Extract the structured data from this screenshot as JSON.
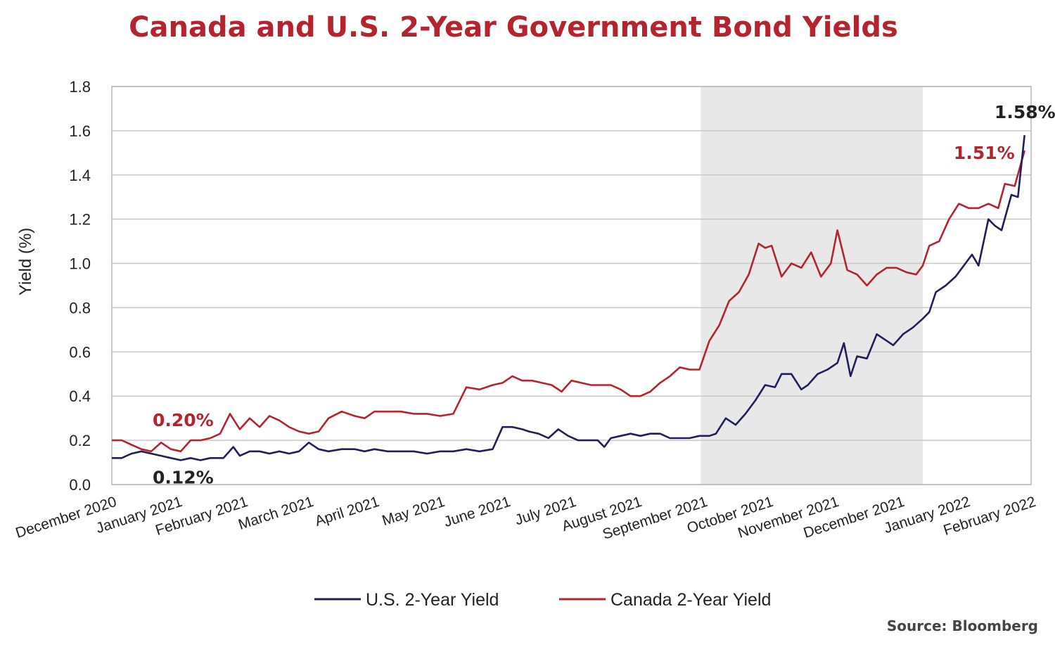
{
  "chart_data": {
    "type": "line",
    "title": "Canada and U.S. 2-Year Government Bond Yields",
    "ylabel": "Yield (%)",
    "ylim": [
      0,
      1.8
    ],
    "yticks": [
      "0.0",
      "0.2",
      "0.4",
      "0.6",
      "0.8",
      "1.0",
      "1.2",
      "1.4",
      "1.6",
      "1.8"
    ],
    "xlim": [
      0,
      14
    ],
    "x_tick_labels": [
      "December 2020",
      "January 2021",
      "February 2021",
      "March 2021",
      "April 2021",
      "May 2021",
      "June 2021",
      "July 2021",
      "August 2021",
      "September 2021",
      "October 2021",
      "November 2021",
      "December 2021",
      "January 2022",
      "February 2022"
    ],
    "grid": "horizontal",
    "shaded_region": [
      8.97,
      12.35
    ],
    "legend_position": "bottom",
    "source": "Source: Bloomberg",
    "series": [
      {
        "name": "U.S. 2-Year Yield",
        "color": "#1f1f5c",
        "x": [
          0,
          0.15,
          0.3,
          0.45,
          0.6,
          0.75,
          0.9,
          1.05,
          1.2,
          1.35,
          1.5,
          1.7,
          1.85,
          1.95,
          2.1,
          2.25,
          2.4,
          2.55,
          2.7,
          2.85,
          3.0,
          3.15,
          3.3,
          3.5,
          3.7,
          3.85,
          4.0,
          4.2,
          4.4,
          4.6,
          4.8,
          5.0,
          5.2,
          5.4,
          5.6,
          5.8,
          5.95,
          6.1,
          6.25,
          6.35,
          6.5,
          6.65,
          6.8,
          6.95,
          7.1,
          7.25,
          7.4,
          7.5,
          7.6,
          7.75,
          7.9,
          8.05,
          8.2,
          8.35,
          8.5,
          8.65,
          8.8,
          8.95,
          9.1,
          9.2,
          9.35,
          9.5,
          9.65,
          9.8,
          9.95,
          10.1,
          10.2,
          10.35,
          10.5,
          10.6,
          10.75,
          10.9,
          11.05,
          11.15,
          11.25,
          11.35,
          11.5,
          11.65,
          11.8,
          11.9,
          12.05,
          12.2,
          12.35,
          12.45,
          12.55,
          12.7,
          12.85,
          13.0,
          13.1,
          13.2,
          13.35,
          13.45,
          13.55,
          13.7,
          13.8,
          13.9
        ],
        "values": [
          0.12,
          0.12,
          0.14,
          0.15,
          0.14,
          0.13,
          0.12,
          0.11,
          0.12,
          0.11,
          0.12,
          0.12,
          0.17,
          0.13,
          0.15,
          0.15,
          0.14,
          0.15,
          0.14,
          0.15,
          0.19,
          0.16,
          0.15,
          0.16,
          0.16,
          0.15,
          0.16,
          0.15,
          0.15,
          0.15,
          0.14,
          0.15,
          0.15,
          0.16,
          0.15,
          0.16,
          0.26,
          0.26,
          0.25,
          0.24,
          0.23,
          0.21,
          0.25,
          0.22,
          0.2,
          0.2,
          0.2,
          0.17,
          0.21,
          0.22,
          0.23,
          0.22,
          0.23,
          0.23,
          0.21,
          0.21,
          0.21,
          0.22,
          0.22,
          0.23,
          0.3,
          0.27,
          0.32,
          0.38,
          0.45,
          0.44,
          0.5,
          0.5,
          0.43,
          0.45,
          0.5,
          0.52,
          0.55,
          0.64,
          0.49,
          0.58,
          0.57,
          0.68,
          0.65,
          0.63,
          0.68,
          0.71,
          0.75,
          0.78,
          0.87,
          0.9,
          0.94,
          1.0,
          1.04,
          0.99,
          1.2,
          1.17,
          1.15,
          1.31,
          1.3,
          1.58
        ]
      },
      {
        "name": "Canada 2-Year Yield",
        "color": "#b5232f",
        "x": [
          0,
          0.15,
          0.3,
          0.45,
          0.6,
          0.75,
          0.9,
          1.05,
          1.2,
          1.35,
          1.5,
          1.65,
          1.8,
          1.95,
          2.1,
          2.25,
          2.4,
          2.55,
          2.7,
          2.85,
          3.0,
          3.15,
          3.3,
          3.5,
          3.7,
          3.85,
          4.0,
          4.2,
          4.4,
          4.6,
          4.8,
          5.0,
          5.2,
          5.4,
          5.6,
          5.8,
          5.95,
          6.1,
          6.25,
          6.4,
          6.55,
          6.7,
          6.85,
          7.0,
          7.15,
          7.3,
          7.45,
          7.6,
          7.75,
          7.9,
          8.05,
          8.2,
          8.35,
          8.5,
          8.65,
          8.8,
          8.95,
          9.1,
          9.25,
          9.4,
          9.55,
          9.7,
          9.85,
          9.95,
          10.05,
          10.2,
          10.35,
          10.5,
          10.65,
          10.8,
          10.95,
          11.05,
          11.2,
          11.35,
          11.5,
          11.65,
          11.8,
          11.95,
          12.1,
          12.25,
          12.35,
          12.45,
          12.6,
          12.75,
          12.9,
          13.05,
          13.2,
          13.35,
          13.5,
          13.6,
          13.75,
          13.9
        ],
        "values": [
          0.2,
          0.2,
          0.18,
          0.16,
          0.15,
          0.19,
          0.16,
          0.15,
          0.2,
          0.2,
          0.21,
          0.23,
          0.32,
          0.25,
          0.3,
          0.26,
          0.31,
          0.29,
          0.26,
          0.24,
          0.23,
          0.24,
          0.3,
          0.33,
          0.31,
          0.3,
          0.33,
          0.33,
          0.33,
          0.32,
          0.32,
          0.31,
          0.32,
          0.44,
          0.43,
          0.45,
          0.46,
          0.49,
          0.47,
          0.47,
          0.46,
          0.45,
          0.42,
          0.47,
          0.46,
          0.45,
          0.45,
          0.45,
          0.43,
          0.4,
          0.4,
          0.42,
          0.46,
          0.49,
          0.53,
          0.52,
          0.52,
          0.65,
          0.72,
          0.83,
          0.87,
          0.95,
          1.09,
          1.07,
          1.08,
          0.94,
          1.0,
          0.98,
          1.05,
          0.94,
          1.0,
          1.15,
          0.97,
          0.95,
          0.9,
          0.95,
          0.98,
          0.98,
          0.96,
          0.95,
          0.99,
          1.08,
          1.1,
          1.2,
          1.27,
          1.25,
          1.25,
          1.27,
          1.25,
          1.36,
          1.35,
          1.51
        ]
      }
    ],
    "annotations": [
      {
        "text": "0.20%",
        "x": 0.3,
        "y": 0.2,
        "color": "#b5232f"
      },
      {
        "text": "0.12%",
        "x": 0.3,
        "y": 0.12,
        "color": "#222222"
      },
      {
        "text": "1.58%",
        "x": 13.9,
        "y": 1.58,
        "color": "#222222"
      },
      {
        "text": "1.51%",
        "x": 13.9,
        "y": 1.51,
        "color": "#b5232f"
      }
    ]
  }
}
